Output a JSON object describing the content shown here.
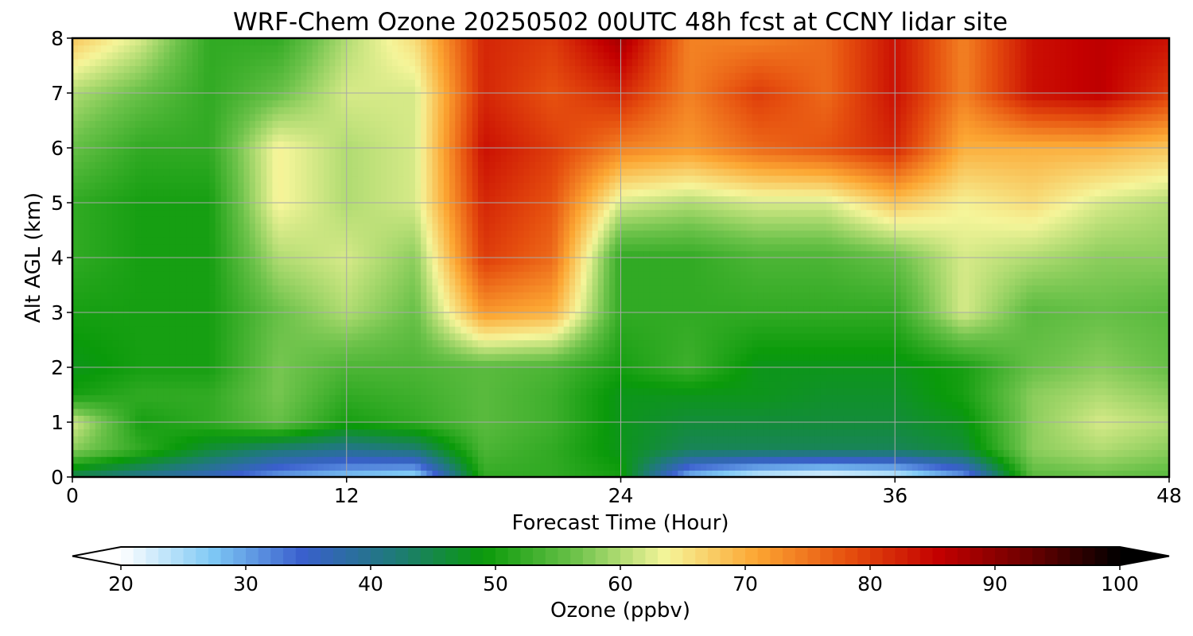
{
  "chart_data": {
    "type": "heatmap",
    "title": "WRF-Chem Ozone  20250502 00UTC 48h fcst at CCNY lidar site",
    "xlabel": "Forecast Time (Hour)",
    "ylabel": "Alt AGL (km)",
    "xlim": [
      0,
      48
    ],
    "ylim": [
      0,
      8
    ],
    "xticks": [
      "0",
      "12",
      "24",
      "36",
      "48"
    ],
    "yticks": [
      "0",
      "1",
      "2",
      "3",
      "4",
      "5",
      "6",
      "7",
      "8"
    ],
    "grid": true,
    "x": [
      0,
      3,
      6,
      9,
      12,
      15,
      18,
      21,
      24,
      27,
      30,
      33,
      36,
      39,
      42,
      45,
      48
    ],
    "y": [
      0,
      0.5,
      1,
      1.5,
      2,
      3,
      4,
      5,
      6,
      7,
      8
    ],
    "z": [
      [
        44,
        40,
        36,
        30,
        27,
        25,
        52,
        52,
        50,
        28,
        22,
        20,
        22,
        30,
        55,
        56,
        55
      ],
      [
        58,
        52,
        46,
        42,
        40,
        42,
        54,
        52,
        48,
        44,
        44,
        44,
        44,
        46,
        58,
        60,
        58
      ],
      [
        62,
        50,
        52,
        56,
        50,
        52,
        55,
        53,
        48,
        46,
        46,
        46,
        46,
        48,
        58,
        62,
        60
      ],
      [
        50,
        52,
        52,
        57,
        52,
        53,
        55,
        53,
        48,
        48,
        48,
        47,
        47,
        50,
        58,
        60,
        58
      ],
      [
        48,
        50,
        50,
        57,
        54,
        54,
        55,
        54,
        50,
        53,
        48,
        48,
        48,
        50,
        56,
        58,
        56
      ],
      [
        50,
        50,
        50,
        56,
        60,
        56,
        72,
        70,
        52,
        52,
        52,
        52,
        52,
        62,
        55,
        56,
        55
      ],
      [
        52,
        50,
        50,
        60,
        62,
        58,
        80,
        76,
        52,
        52,
        54,
        54,
        56,
        62,
        60,
        58,
        58
      ],
      [
        52,
        50,
        50,
        64,
        60,
        62,
        82,
        78,
        62,
        60,
        62,
        62,
        68,
        64,
        66,
        62,
        60
      ],
      [
        56,
        52,
        52,
        64,
        60,
        62,
        84,
        80,
        74,
        72,
        76,
        78,
        82,
        70,
        70,
        70,
        68
      ],
      [
        60,
        56,
        52,
        56,
        62,
        62,
        82,
        78,
        82,
        74,
        80,
        76,
        84,
        74,
        84,
        86,
        80
      ],
      [
        68,
        62,
        52,
        52,
        60,
        66,
        82,
        80,
        88,
        74,
        74,
        76,
        84,
        74,
        84,
        86,
        84
      ]
    ],
    "colorbar": {
      "label": "Ozone  (ppbv)",
      "min": 20,
      "max": 100,
      "ticks": [
        "20",
        "30",
        "40",
        "50",
        "60",
        "70",
        "80",
        "90",
        "100"
      ],
      "extend": "both",
      "colors": [
        "#ffffff",
        "#7fc9f5",
        "#3a5fcd",
        "#1f7a7a",
        "#0a9a0a",
        "#6cc24a",
        "#f5f59a",
        "#fca632",
        "#e6500f",
        "#c40000",
        "#6b0000",
        "#000000"
      ]
    }
  }
}
